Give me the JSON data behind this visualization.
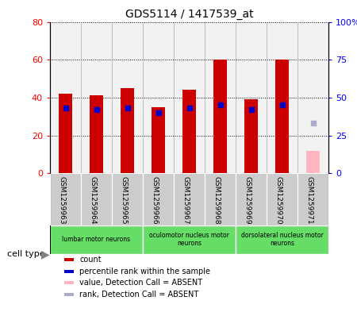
{
  "title": "GDS5114 / 1417539_at",
  "samples": [
    "GSM1259963",
    "GSM1259964",
    "GSM1259965",
    "GSM1259966",
    "GSM1259967",
    "GSM1259968",
    "GSM1259969",
    "GSM1259970",
    "GSM1259971"
  ],
  "count_values": [
    42,
    41,
    45,
    35,
    44,
    60,
    39,
    60,
    null
  ],
  "rank_values": [
    43,
    42,
    43,
    40,
    43,
    45,
    42,
    45,
    null
  ],
  "absent_count": [
    null,
    null,
    null,
    null,
    null,
    null,
    null,
    null,
    12
  ],
  "absent_rank": [
    null,
    null,
    null,
    null,
    null,
    null,
    null,
    null,
    33
  ],
  "cell_types": [
    {
      "label": "lumbar motor neurons",
      "start": 0,
      "end": 3
    },
    {
      "label": "oculomotor nucleus motor\nneurons",
      "start": 3,
      "end": 6
    },
    {
      "label": "dorsolateral nucleus motor\nneurons",
      "start": 6,
      "end": 9
    }
  ],
  "ylim_left": [
    0,
    80
  ],
  "ylim_right": [
    0,
    100
  ],
  "yticks_left": [
    0,
    20,
    40,
    60,
    80
  ],
  "ytick_labels_left": [
    "0",
    "20",
    "40",
    "60",
    "80"
  ],
  "yticks_right": [
    0,
    25,
    50,
    75,
    100
  ],
  "ytick_labels_right": [
    "0",
    "25",
    "50",
    "75",
    "100%"
  ],
  "count_color": "#cc0000",
  "rank_color": "#0000cc",
  "absent_count_color": "#ffb6c1",
  "absent_rank_color": "#aaaacc",
  "bg_color": "#ffffff",
  "grid_color": "#000000",
  "cell_type_bg": "#66dd66",
  "sample_bg": "#cccccc",
  "legend_items": [
    {
      "color": "#cc0000",
      "label": "count"
    },
    {
      "color": "#0000cc",
      "label": "percentile rank within the sample"
    },
    {
      "color": "#ffb6c1",
      "label": "value, Detection Call = ABSENT"
    },
    {
      "color": "#aaaacc",
      "label": "rank, Detection Call = ABSENT"
    }
  ]
}
